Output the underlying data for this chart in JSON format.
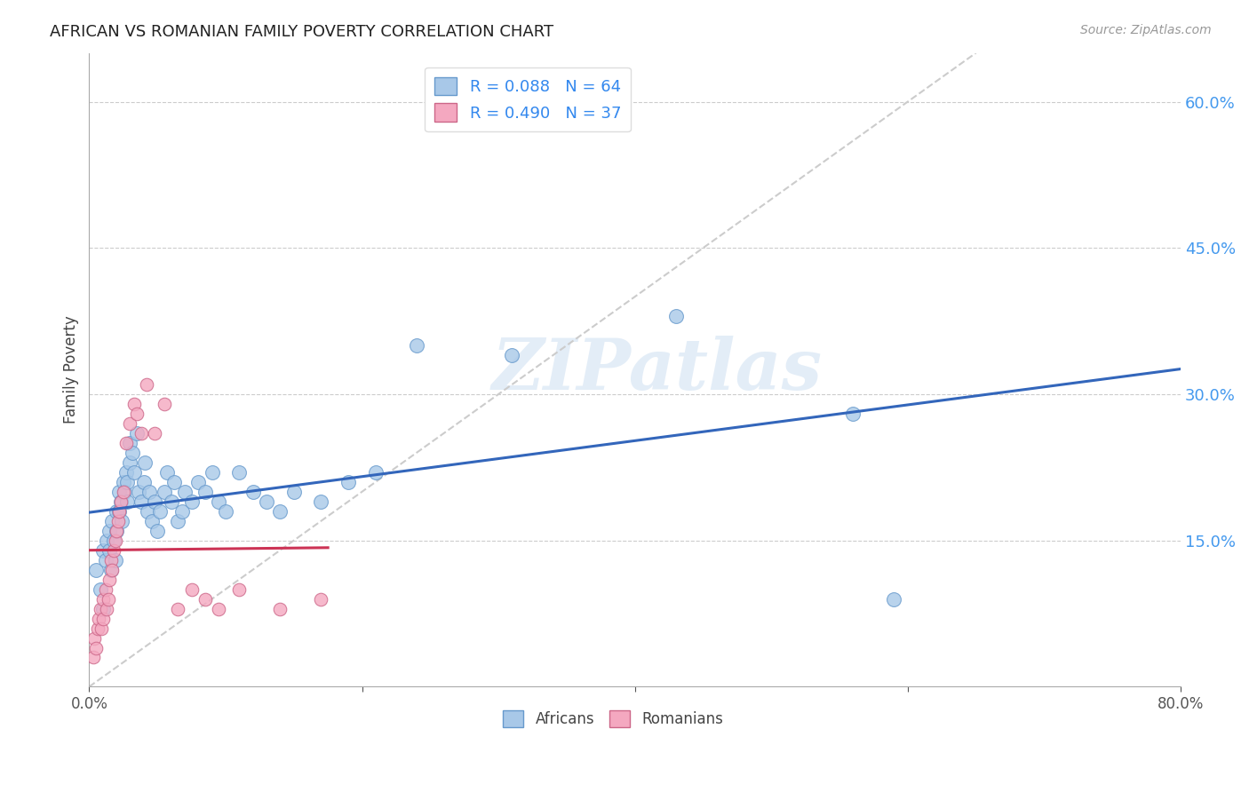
{
  "title": "AFRICAN VS ROMANIAN FAMILY POVERTY CORRELATION CHART",
  "source": "Source: ZipAtlas.com",
  "ylabel": "Family Poverty",
  "xlim": [
    0.0,
    0.8
  ],
  "ylim": [
    0.0,
    0.65
  ],
  "xtick_positions": [
    0.0,
    0.2,
    0.4,
    0.6,
    0.8
  ],
  "xticklabels": [
    "0.0%",
    "",
    "",
    "",
    "80.0%"
  ],
  "ytick_right_positions": [
    0.15,
    0.3,
    0.45,
    0.6
  ],
  "ytick_right_labels": [
    "15.0%",
    "30.0%",
    "45.0%",
    "60.0%"
  ],
  "african_color": "#A8C8E8",
  "romanian_color": "#F4A8C0",
  "african_edge_color": "#6699CC",
  "romanian_edge_color": "#CC6688",
  "trendline_african_color": "#3366BB",
  "trendline_romanian_color": "#CC3355",
  "diagonal_color": "#CCCCCC",
  "african_R": 0.088,
  "african_N": 64,
  "romanian_R": 0.49,
  "romanian_N": 37,
  "watermark_text": "ZIPatlas",
  "africans_x": [
    0.005,
    0.008,
    0.01,
    0.01,
    0.012,
    0.013,
    0.015,
    0.015,
    0.016,
    0.017,
    0.018,
    0.019,
    0.02,
    0.02,
    0.022,
    0.022,
    0.023,
    0.024,
    0.025,
    0.026,
    0.027,
    0.028,
    0.028,
    0.03,
    0.03,
    0.032,
    0.033,
    0.035,
    0.036,
    0.038,
    0.04,
    0.041,
    0.043,
    0.044,
    0.046,
    0.048,
    0.05,
    0.052,
    0.055,
    0.057,
    0.06,
    0.062,
    0.065,
    0.068,
    0.07,
    0.075,
    0.08,
    0.085,
    0.09,
    0.095,
    0.1,
    0.11,
    0.12,
    0.13,
    0.14,
    0.15,
    0.17,
    0.19,
    0.21,
    0.24,
    0.31,
    0.43,
    0.56,
    0.59
  ],
  "africans_y": [
    0.12,
    0.1,
    0.14,
    0.08,
    0.13,
    0.15,
    0.16,
    0.14,
    0.12,
    0.17,
    0.15,
    0.13,
    0.18,
    0.16,
    0.2,
    0.18,
    0.19,
    0.17,
    0.21,
    0.2,
    0.22,
    0.19,
    0.21,
    0.23,
    0.25,
    0.24,
    0.22,
    0.26,
    0.2,
    0.19,
    0.21,
    0.23,
    0.18,
    0.2,
    0.17,
    0.19,
    0.16,
    0.18,
    0.2,
    0.22,
    0.19,
    0.21,
    0.17,
    0.18,
    0.2,
    0.19,
    0.21,
    0.2,
    0.22,
    0.19,
    0.18,
    0.22,
    0.2,
    0.19,
    0.18,
    0.2,
    0.19,
    0.21,
    0.22,
    0.35,
    0.34,
    0.38,
    0.28,
    0.09
  ],
  "romanians_x": [
    0.003,
    0.004,
    0.005,
    0.006,
    0.007,
    0.008,
    0.009,
    0.01,
    0.01,
    0.012,
    0.013,
    0.014,
    0.015,
    0.016,
    0.017,
    0.018,
    0.019,
    0.02,
    0.021,
    0.022,
    0.023,
    0.025,
    0.027,
    0.03,
    0.033,
    0.035,
    0.038,
    0.042,
    0.048,
    0.055,
    0.065,
    0.075,
    0.085,
    0.095,
    0.11,
    0.14,
    0.17
  ],
  "romanians_y": [
    0.03,
    0.05,
    0.04,
    0.06,
    0.07,
    0.08,
    0.06,
    0.09,
    0.07,
    0.1,
    0.08,
    0.09,
    0.11,
    0.13,
    0.12,
    0.14,
    0.15,
    0.16,
    0.17,
    0.18,
    0.19,
    0.2,
    0.25,
    0.27,
    0.29,
    0.28,
    0.26,
    0.31,
    0.26,
    0.29,
    0.08,
    0.1,
    0.09,
    0.08,
    0.1,
    0.08,
    0.09
  ]
}
